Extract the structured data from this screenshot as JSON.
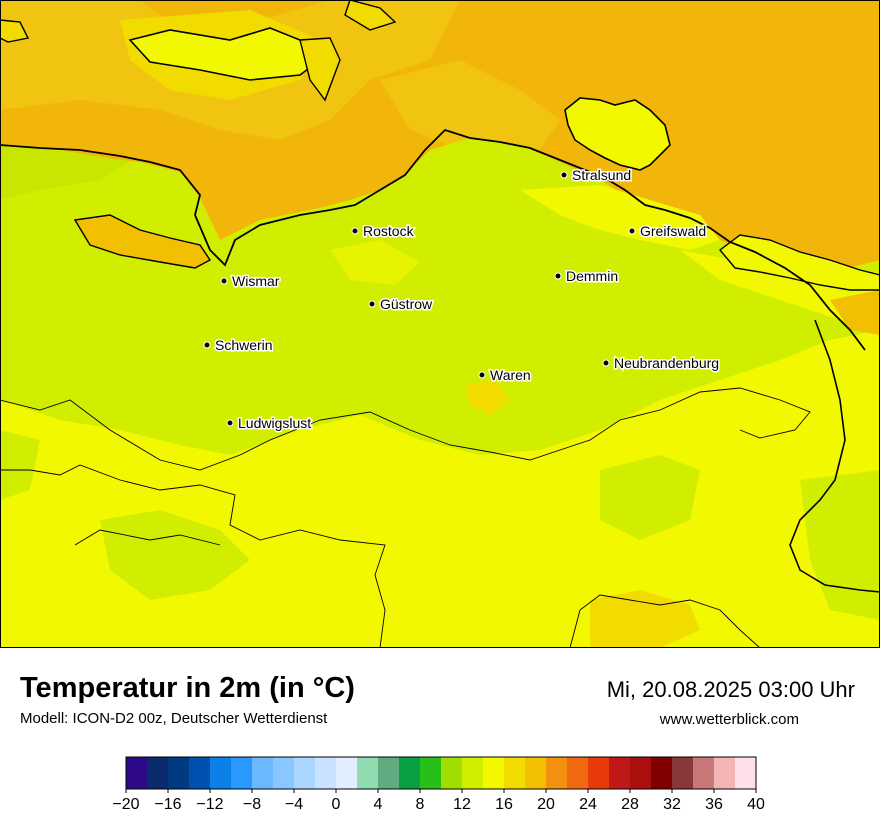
{
  "title": "Temperatur in 2m (in °C)",
  "subtitle": "Modell: ICON-D2 00z, Deutscher Wetterdienst",
  "datetime": "Mi, 20.08.2025 03:00 Uhr",
  "website": "www.wetterblick.com",
  "cities": [
    {
      "name": "Stralsund"
    },
    {
      "name": "Rostock"
    },
    {
      "name": "Greifswald"
    },
    {
      "name": "Wismar"
    },
    {
      "name": "Demmin"
    },
    {
      "name": "Güstrow"
    },
    {
      "name": "Schwerin"
    },
    {
      "name": "Neubrandenburg"
    },
    {
      "name": "Waren"
    },
    {
      "name": "Ludwigslust"
    }
  ],
  "colorbar": {
    "min": -20,
    "max": 40,
    "step": 2,
    "tick_labels": [
      "−20",
      "−16",
      "−12",
      "−8",
      "−4",
      "0",
      "4",
      "8",
      "12",
      "16",
      "20",
      "24",
      "28",
      "32",
      "36",
      "40"
    ],
    "colors": [
      "#2e0a88",
      "#0a2a6e",
      "#003a80",
      "#0050b0",
      "#0a80e8",
      "#2a98ff",
      "#6ab8ff",
      "#8ac6ff",
      "#aad6ff",
      "#c8e2ff",
      "#e0eeff",
      "#90dcb0",
      "#60ac80",
      "#08a040",
      "#28c018",
      "#a0de00",
      "#d2ee00",
      "#f2f800",
      "#f2dc00",
      "#f2c000",
      "#f29010",
      "#f06810",
      "#e83a08",
      "#c01818",
      "#aa1010",
      "#800000",
      "#883838",
      "#c87878",
      "#f2b4b4",
      "#ffe0e8"
    ]
  },
  "field_colors": {
    "sea": "#f2b60a",
    "sea_mid": "#f0c010",
    "land_main": "#d2ee00",
    "land_warm": "#f2f800",
    "land_patch": "#f2dc00"
  }
}
